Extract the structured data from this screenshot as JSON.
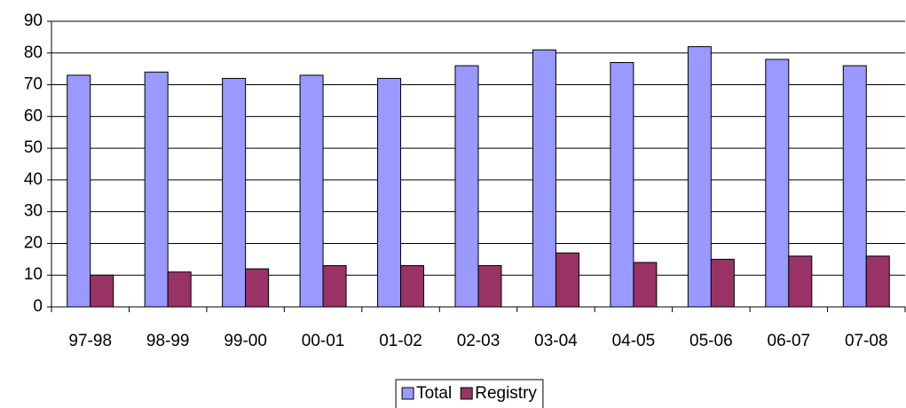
{
  "chart_data": {
    "type": "bar",
    "categories": [
      "97-98",
      "98-99",
      "99-00",
      "00-01",
      "01-02",
      "02-03",
      "03-04",
      "04-05",
      "05-06",
      "06-07",
      "07-08"
    ],
    "series": [
      {
        "name": "Total",
        "color": "#9999ff",
        "values": [
          73,
          74,
          72,
          73,
          72,
          76,
          81,
          77,
          82,
          78,
          76
        ]
      },
      {
        "name": "Registry",
        "color": "#993366",
        "values": [
          10,
          11,
          12,
          13,
          13,
          13,
          17,
          14,
          15,
          16,
          16
        ]
      }
    ],
    "ylim": [
      0,
      90
    ],
    "yticks": [
      0,
      10,
      20,
      30,
      40,
      50,
      60,
      70,
      80,
      90
    ],
    "grid": true,
    "legend": "bottom"
  }
}
